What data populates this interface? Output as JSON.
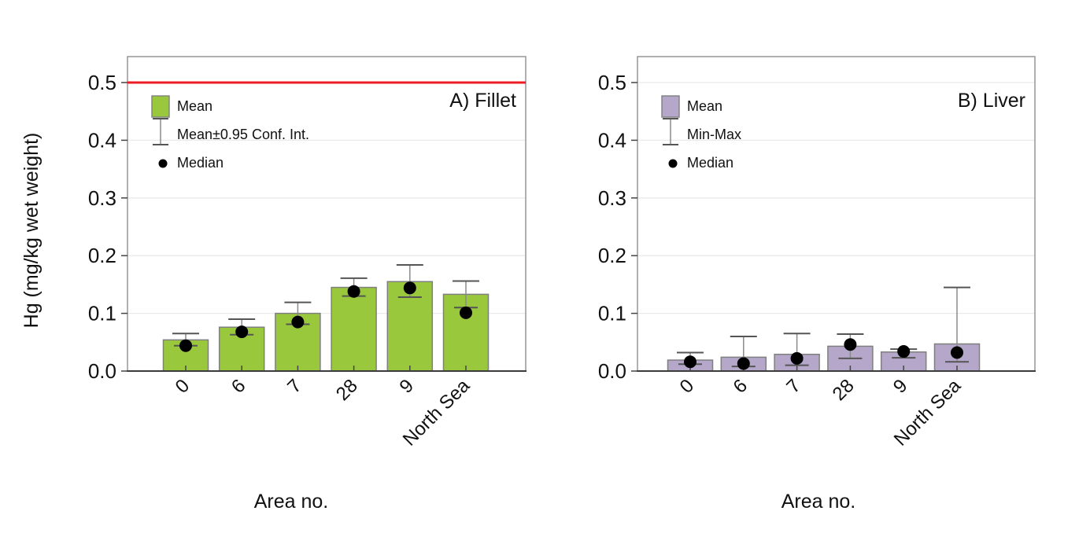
{
  "figure": {
    "y_axis_title": "Hg (mg/kg wet weight)",
    "x_axis_title_a": "Area no.",
    "x_axis_title_b": "Area no."
  },
  "colors": {
    "background": "#ffffff",
    "reference_line": "#ED1C24",
    "fillet_bar": "#9AC83D",
    "liver_bar": "#B4A7C9",
    "bar_border": "#7F7F7F",
    "grid": "#EAEAEA",
    "plot_border": "#8F8F8F",
    "bottom_axis": "#3C3C3C",
    "tick": "#444444",
    "whisker_stem": "#8A8A8A",
    "whisker_cap": "#555555",
    "median_dot": "#000000",
    "text": "#111111"
  },
  "chart_data": [
    {
      "type": "bar",
      "title": "A) Fillet",
      "categories": [
        "0",
        "6",
        "7",
        "28",
        "9",
        "North Sea"
      ],
      "xlabel": "Area no.",
      "ylabel": "Hg (mg/kg wet weight)",
      "ylim": [
        0,
        0.545
      ],
      "yticks": [
        0,
        0.1,
        0.2,
        0.3,
        0.4,
        0.5
      ],
      "grid": "horizontal",
      "bar_color": "#9AC83D",
      "legend_position": "top-left",
      "legend": [
        {
          "symbol": "bar",
          "label": "Mean"
        },
        {
          "symbol": "whisker",
          "label": "Mean±0.95 Conf. Int."
        },
        {
          "symbol": "dot",
          "label": "Median"
        }
      ],
      "reference_line": {
        "value": 0.5,
        "color": "#ED1C24"
      },
      "series": [
        {
          "name": "Mean",
          "role": "mean",
          "values": [
            0.054,
            0.076,
            0.1,
            0.145,
            0.155,
            0.133
          ]
        },
        {
          "name": "Conf. Int. low",
          "role": "lower",
          "values": [
            0.044,
            0.063,
            0.081,
            0.13,
            0.128,
            0.11
          ]
        },
        {
          "name": "Conf. Int. high",
          "role": "upper",
          "values": [
            0.065,
            0.09,
            0.119,
            0.161,
            0.184,
            0.156
          ]
        },
        {
          "name": "Median",
          "role": "median",
          "values": [
            0.044,
            0.068,
            0.085,
            0.138,
            0.144,
            0.101
          ]
        }
      ]
    },
    {
      "type": "bar",
      "title": "B) Liver",
      "categories": [
        "0",
        "6",
        "7",
        "28",
        "9",
        "North Sea"
      ],
      "xlabel": "Area no.",
      "ylabel": "Hg (mg/kg wet weight)",
      "ylim": [
        0,
        0.545
      ],
      "yticks": [
        0,
        0.1,
        0.2,
        0.3,
        0.4,
        0.5
      ],
      "grid": "horizontal",
      "bar_color": "#B4A7C9",
      "legend_position": "top-left",
      "legend": [
        {
          "symbol": "bar",
          "label": "Mean"
        },
        {
          "symbol": "whisker",
          "label": "Min-Max"
        },
        {
          "symbol": "dot",
          "label": "Median"
        }
      ],
      "reference_line": null,
      "series": [
        {
          "name": "Mean",
          "role": "mean",
          "values": [
            0.019,
            0.024,
            0.029,
            0.043,
            0.033,
            0.047
          ]
        },
        {
          "name": "Min",
          "role": "lower",
          "values": [
            0.012,
            0.008,
            0.01,
            0.022,
            0.023,
            0.016
          ]
        },
        {
          "name": "Max",
          "role": "upper",
          "values": [
            0.032,
            0.06,
            0.065,
            0.064,
            0.038,
            0.145
          ]
        },
        {
          "name": "Median",
          "role": "median",
          "values": [
            0.016,
            0.013,
            0.022,
            0.046,
            0.034,
            0.032
          ]
        }
      ]
    }
  ]
}
